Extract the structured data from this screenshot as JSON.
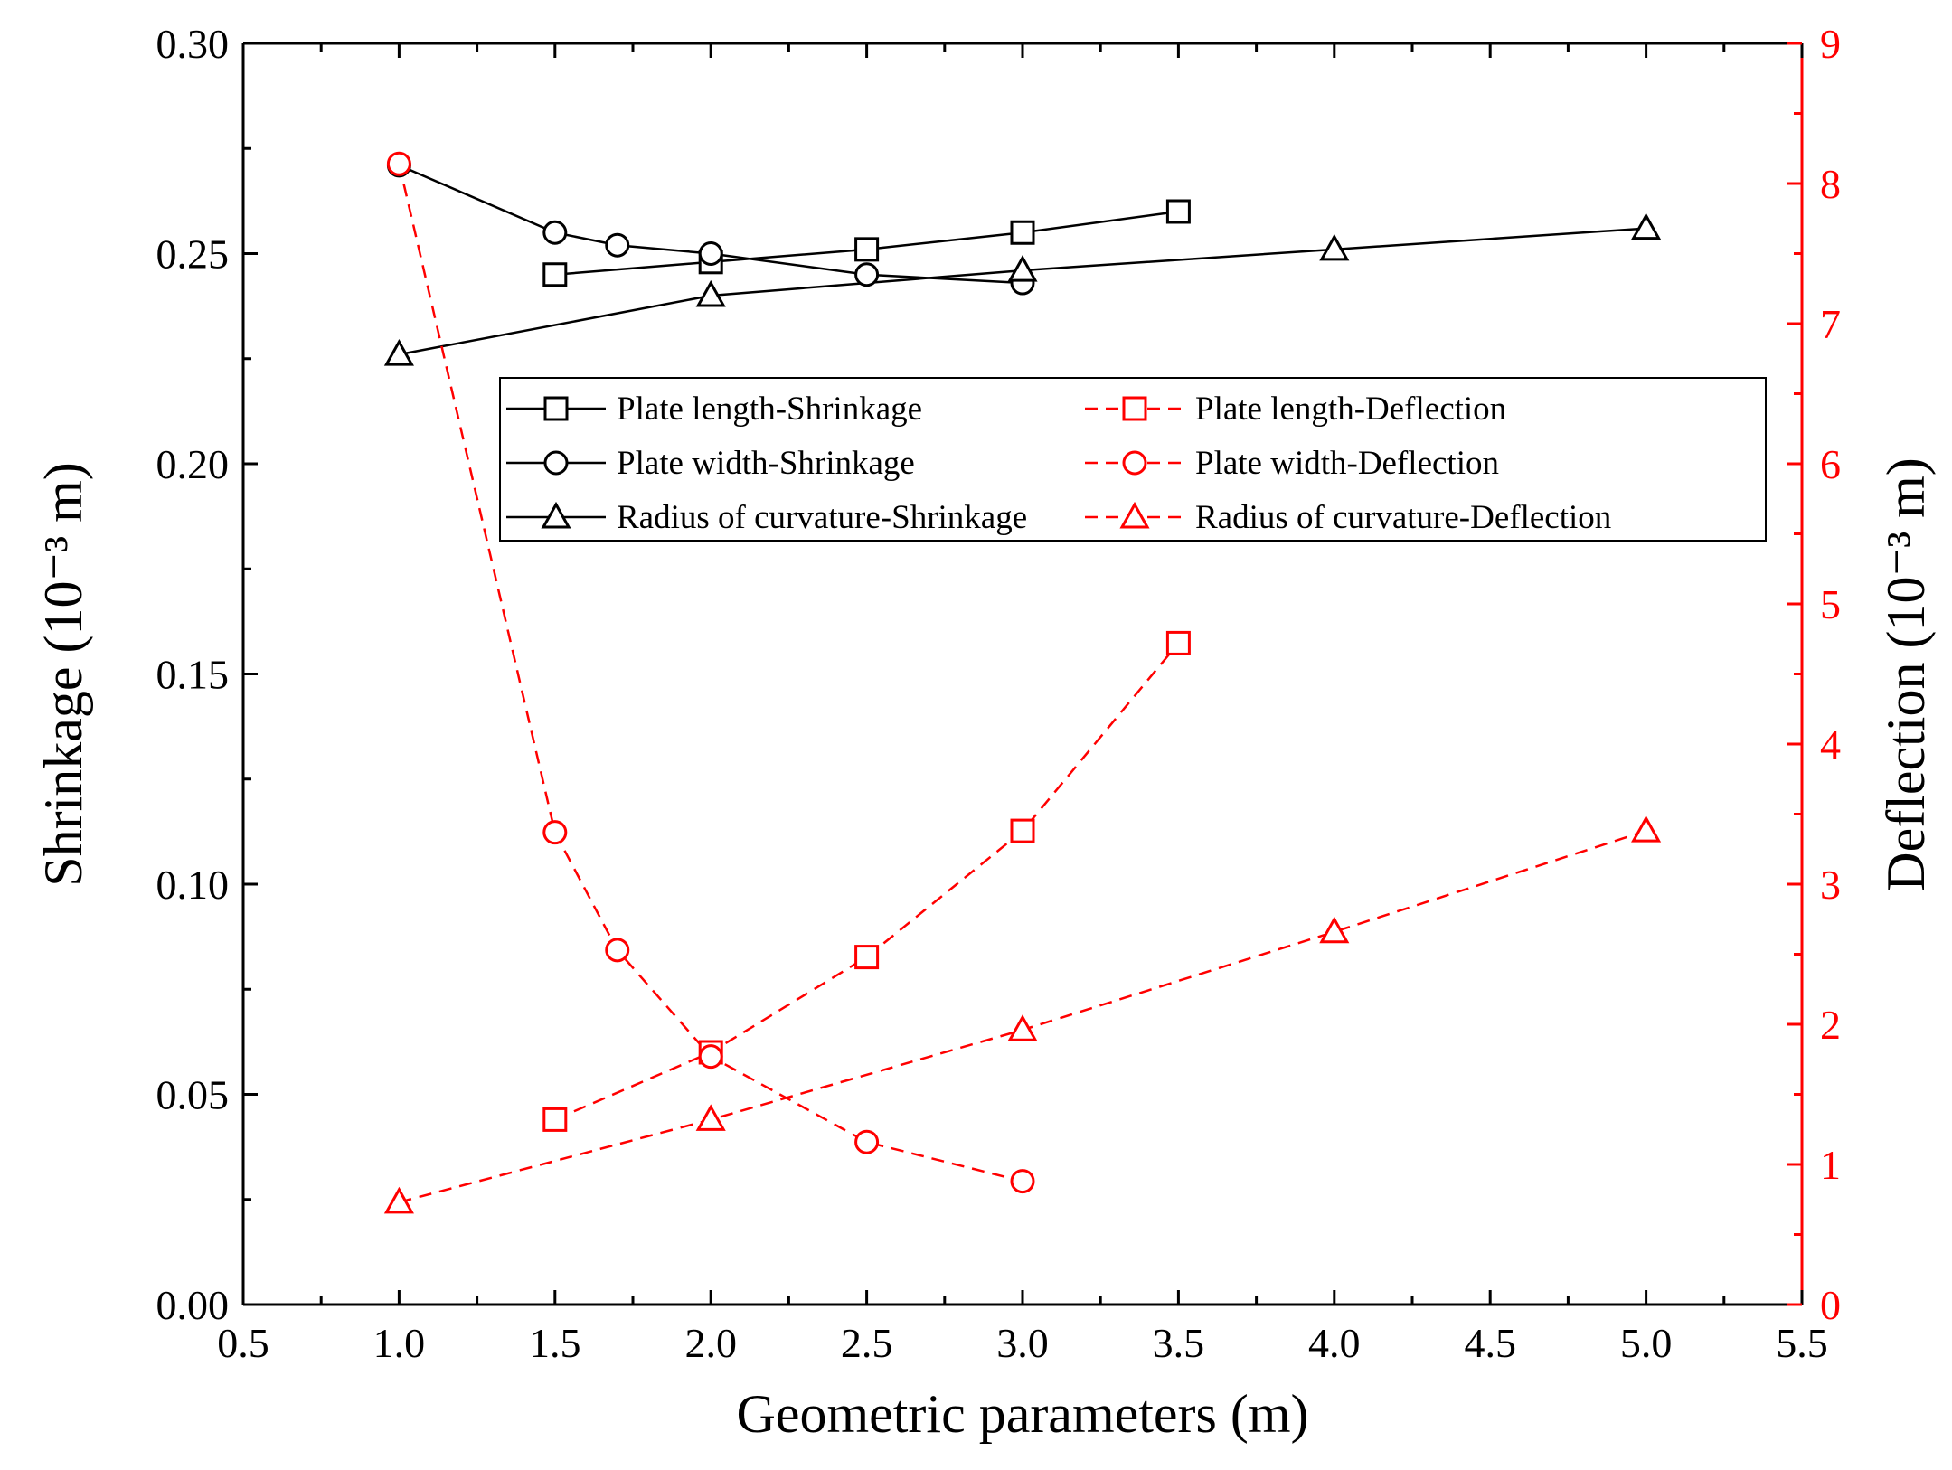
{
  "chart_data": {
    "type": "line",
    "title": "",
    "xlabel": "Geometric parameters (m)",
    "ylabel_left": "Shrinkage (10⁻³ m)",
    "ylabel_right": "Deflection (10⁻³ m)",
    "xlim": [
      0.5,
      5.5
    ],
    "ylim_left": [
      0.0,
      0.3
    ],
    "ylim_right": [
      0,
      9
    ],
    "x_ticks": [
      "0.5",
      "1.0",
      "1.5",
      "2.0",
      "2.5",
      "3.0",
      "3.5",
      "4.0",
      "4.5",
      "5.0",
      "5.5"
    ],
    "y_left_ticks": [
      "0.00",
      "0.05",
      "0.10",
      "0.15",
      "0.20",
      "0.25",
      "0.30"
    ],
    "y_right_ticks": [
      "0",
      "1",
      "2",
      "3",
      "4",
      "5",
      "6",
      "7",
      "8",
      "9"
    ],
    "grid": false,
    "legend_position": "upper-center",
    "series": [
      {
        "name": "Plate length-Shrinkage",
        "axis": "left",
        "marker": "square",
        "color": "#000000",
        "dashed": false,
        "x": [
          1.5,
          2.0,
          2.5,
          3.0,
          3.5
        ],
        "y": [
          0.245,
          0.248,
          0.251,
          0.255,
          0.26
        ]
      },
      {
        "name": "Plate width-Shrinkage",
        "axis": "left",
        "marker": "circle",
        "color": "#000000",
        "dashed": false,
        "x": [
          1.0,
          1.5,
          1.7,
          2.0,
          2.5,
          3.0
        ],
        "y": [
          0.271,
          0.255,
          0.252,
          0.25,
          0.245,
          0.243
        ]
      },
      {
        "name": "Radius of curvature-Shrinkage",
        "axis": "left",
        "marker": "triangle",
        "color": "#000000",
        "dashed": false,
        "x": [
          1.0,
          2.0,
          3.0,
          4.0,
          5.0
        ],
        "y": [
          0.226,
          0.24,
          0.246,
          0.251,
          0.256
        ]
      },
      {
        "name": "Plate length-Deflection",
        "axis": "right",
        "marker": "square",
        "color": "#ff0000",
        "dashed": true,
        "x": [
          1.5,
          2.0,
          2.5,
          3.0,
          3.5
        ],
        "y": [
          1.32,
          1.8,
          2.48,
          3.38,
          4.72
        ]
      },
      {
        "name": "Plate width-Deflection",
        "axis": "right",
        "marker": "circle",
        "color": "#ff0000",
        "dashed": true,
        "x": [
          1.0,
          1.5,
          1.7,
          2.0,
          2.5,
          3.0
        ],
        "y": [
          8.14,
          3.37,
          2.53,
          1.77,
          1.16,
          0.88
        ]
      },
      {
        "name": "Radius of curvature-Deflection",
        "axis": "right",
        "marker": "triangle",
        "color": "#ff0000",
        "dashed": true,
        "x": [
          1.0,
          2.0,
          3.0,
          4.0,
          5.0
        ],
        "y": [
          0.73,
          1.32,
          1.96,
          2.66,
          3.38
        ]
      }
    ]
  }
}
